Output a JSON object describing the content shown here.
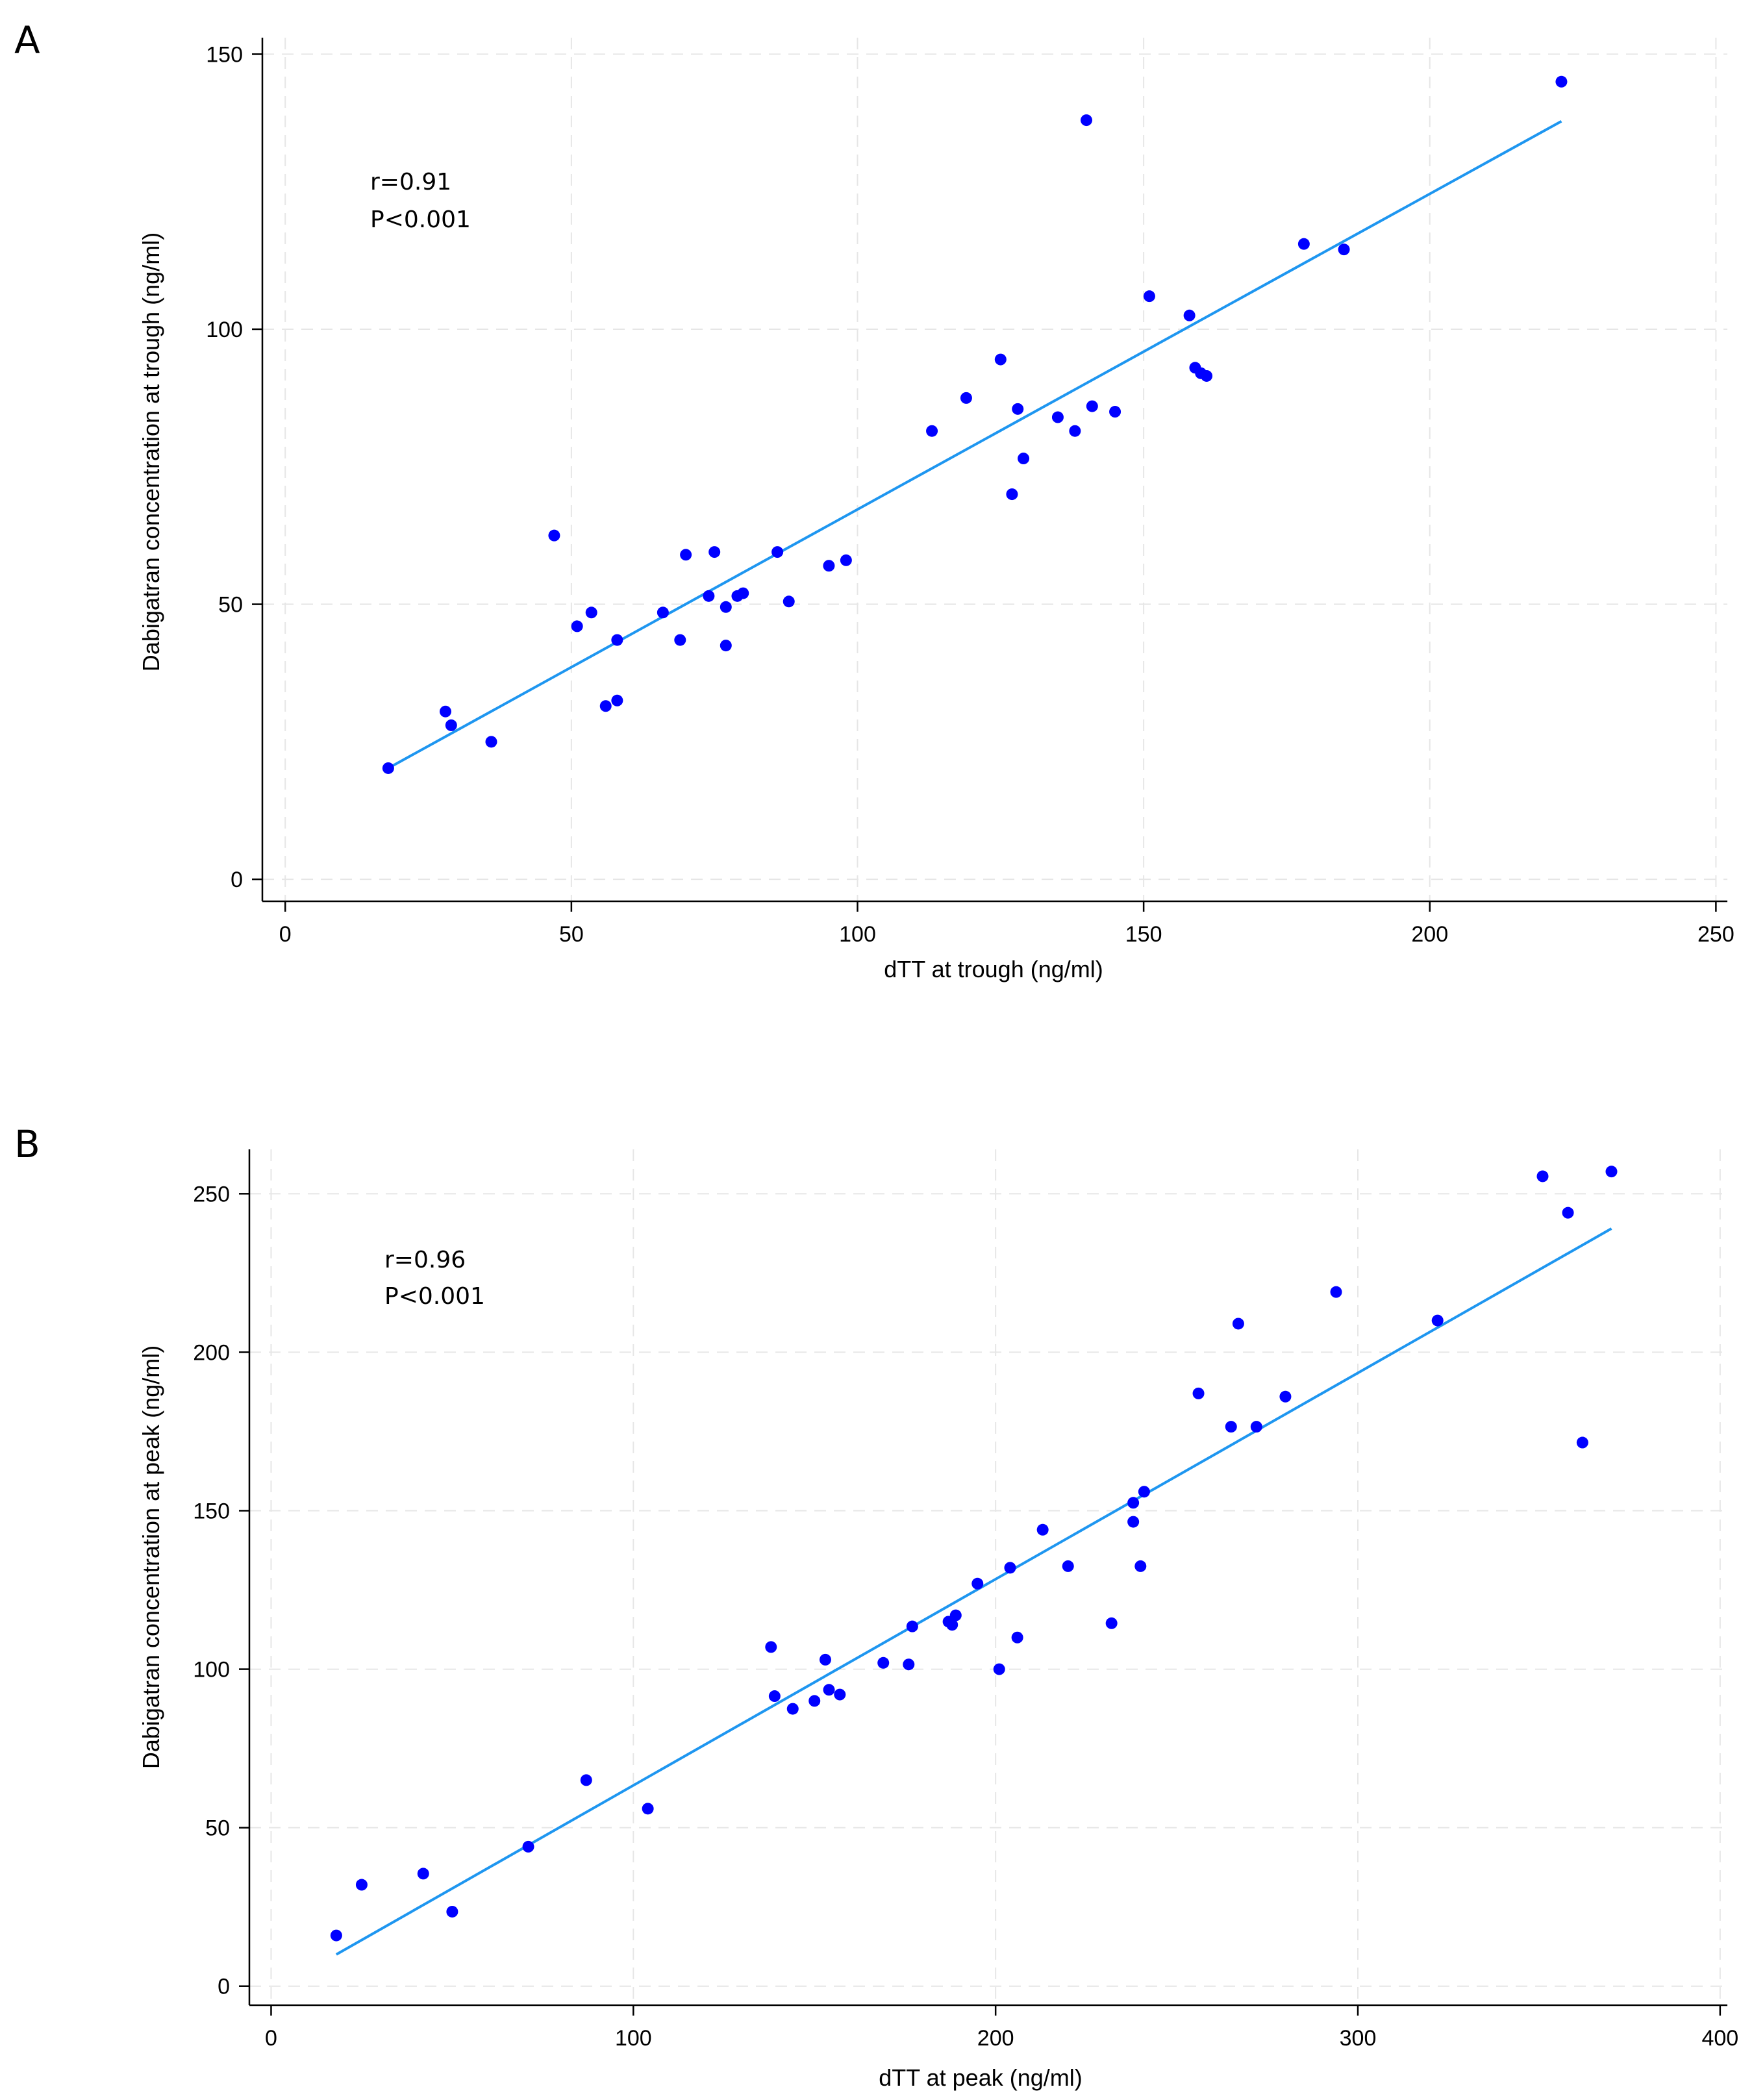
{
  "chart_data": [
    {
      "type": "scatter",
      "panel_label": "A",
      "xlabel": "dTT at trough (ng/ml)",
      "ylabel": "Dabigatran concentration at trough (ng/ml)",
      "xlim": [
        -4,
        252
      ],
      "ylim": [
        -4,
        153
      ],
      "xticks": [
        "0",
        "50",
        "100",
        "150",
        "200",
        "250"
      ],
      "xtick_values": [
        0,
        50,
        100,
        150,
        200,
        250
      ],
      "yticks": [
        "0",
        "50",
        "100",
        "150"
      ],
      "ytick_values": [
        0,
        50,
        100,
        150
      ],
      "annotation": {
        "r": "r=0.91",
        "p": "P<0.001"
      },
      "point_color": "#0000ff",
      "fit_color": "#1e96f0",
      "fit_line": {
        "x": [
          18,
          223
        ],
        "y": [
          20.2,
          137.8
        ]
      },
      "points": [
        [
          18,
          20.2
        ],
        [
          28,
          30.5
        ],
        [
          29,
          28
        ],
        [
          36,
          25
        ],
        [
          47,
          62.5
        ],
        [
          51,
          46
        ],
        [
          53.5,
          48.5
        ],
        [
          56,
          31.5
        ],
        [
          58,
          32.5
        ],
        [
          58,
          43.5
        ],
        [
          66,
          48.5
        ],
        [
          69,
          43.5
        ],
        [
          70,
          59
        ],
        [
          74,
          51.5
        ],
        [
          75,
          59.5
        ],
        [
          77,
          42.5
        ],
        [
          77,
          49.5
        ],
        [
          79,
          51.5
        ],
        [
          80,
          52
        ],
        [
          86,
          59.5
        ],
        [
          88,
          50.5
        ],
        [
          95,
          57
        ],
        [
          98,
          58
        ],
        [
          113,
          81.5
        ],
        [
          119,
          87.5
        ],
        [
          125,
          94.5
        ],
        [
          127,
          70
        ],
        [
          128,
          85.5
        ],
        [
          129,
          76.5
        ],
        [
          135,
          84
        ],
        [
          138,
          81.5
        ],
        [
          140,
          138
        ],
        [
          141,
          86
        ],
        [
          145,
          85
        ],
        [
          151,
          106
        ],
        [
          158,
          102.5
        ],
        [
          159,
          93
        ],
        [
          160,
          92
        ],
        [
          161,
          91.5
        ],
        [
          178,
          115.5
        ],
        [
          185,
          114.5
        ],
        [
          223,
          145
        ]
      ]
    },
    {
      "type": "scatter",
      "panel_label": "B",
      "xlabel": "dTT at peak (ng/ml)",
      "ylabel": "Dabigatran concentration at peak (ng/ml)",
      "xlim": [
        -6,
        402
      ],
      "ylim": [
        -6,
        264
      ],
      "xticks": [
        "0",
        "100",
        "200",
        "300",
        "400"
      ],
      "xtick_values": [
        0,
        100,
        200,
        300,
        400
      ],
      "yticks": [
        "0",
        "50",
        "100",
        "150",
        "200",
        "250"
      ],
      "ytick_values": [
        0,
        50,
        100,
        150,
        200,
        250
      ],
      "annotation": {
        "r": "r=0.96",
        "p": "P<0.001"
      },
      "point_color": "#0000ff",
      "fit_color": "#1e96f0",
      "fit_line": {
        "x": [
          18,
          370
        ],
        "y": [
          10,
          239
        ]
      },
      "points": [
        [
          18,
          16
        ],
        [
          25,
          32
        ],
        [
          42,
          35.5
        ],
        [
          50,
          23.5
        ],
        [
          71,
          44
        ],
        [
          87,
          65
        ],
        [
          104,
          56
        ],
        [
          138,
          107
        ],
        [
          139,
          91.5
        ],
        [
          144,
          87.5
        ],
        [
          150,
          90
        ],
        [
          153,
          103
        ],
        [
          154,
          93.5
        ],
        [
          157,
          92
        ],
        [
          169,
          102
        ],
        [
          176,
          101.5
        ],
        [
          177,
          113.5
        ],
        [
          187,
          115
        ],
        [
          188,
          114
        ],
        [
          189,
          117
        ],
        [
          195,
          127
        ],
        [
          201,
          100
        ],
        [
          204,
          132
        ],
        [
          206,
          110
        ],
        [
          213,
          144
        ],
        [
          220,
          132.5
        ],
        [
          232,
          114.5
        ],
        [
          238,
          146.5
        ],
        [
          238,
          152.5
        ],
        [
          240,
          132.5
        ],
        [
          241,
          156
        ],
        [
          256,
          187
        ],
        [
          265,
          176.5
        ],
        [
          267,
          209
        ],
        [
          272,
          176.5
        ],
        [
          280,
          186
        ],
        [
          294,
          219
        ],
        [
          322,
          210
        ],
        [
          351,
          255.5
        ],
        [
          358,
          244
        ],
        [
          362,
          171.5
        ],
        [
          370,
          257
        ]
      ]
    }
  ]
}
